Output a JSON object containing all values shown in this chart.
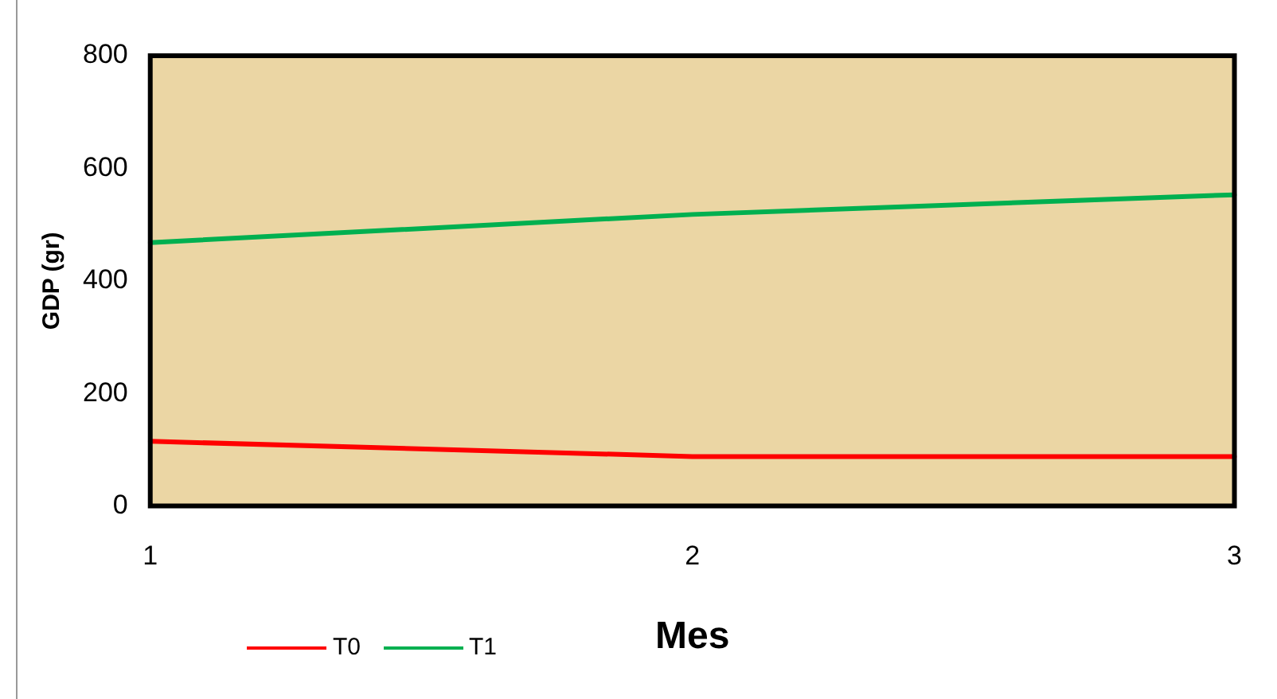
{
  "chart_data": {
    "type": "line",
    "xlabel": "Mes",
    "ylabel": "GDP (gr)",
    "categories": [
      "1",
      "2",
      "3"
    ],
    "series": [
      {
        "name": "T0",
        "color": "#ff0000",
        "values": [
          115,
          88,
          88
        ]
      },
      {
        "name": "T1",
        "color": "#00b050",
        "values": [
          468,
          518,
          553
        ]
      }
    ],
    "ylim": [
      0,
      800
    ],
    "yticks": [
      0,
      200,
      400,
      600,
      800
    ],
    "grid": false,
    "legend": "bottom left",
    "marker": "none"
  }
}
